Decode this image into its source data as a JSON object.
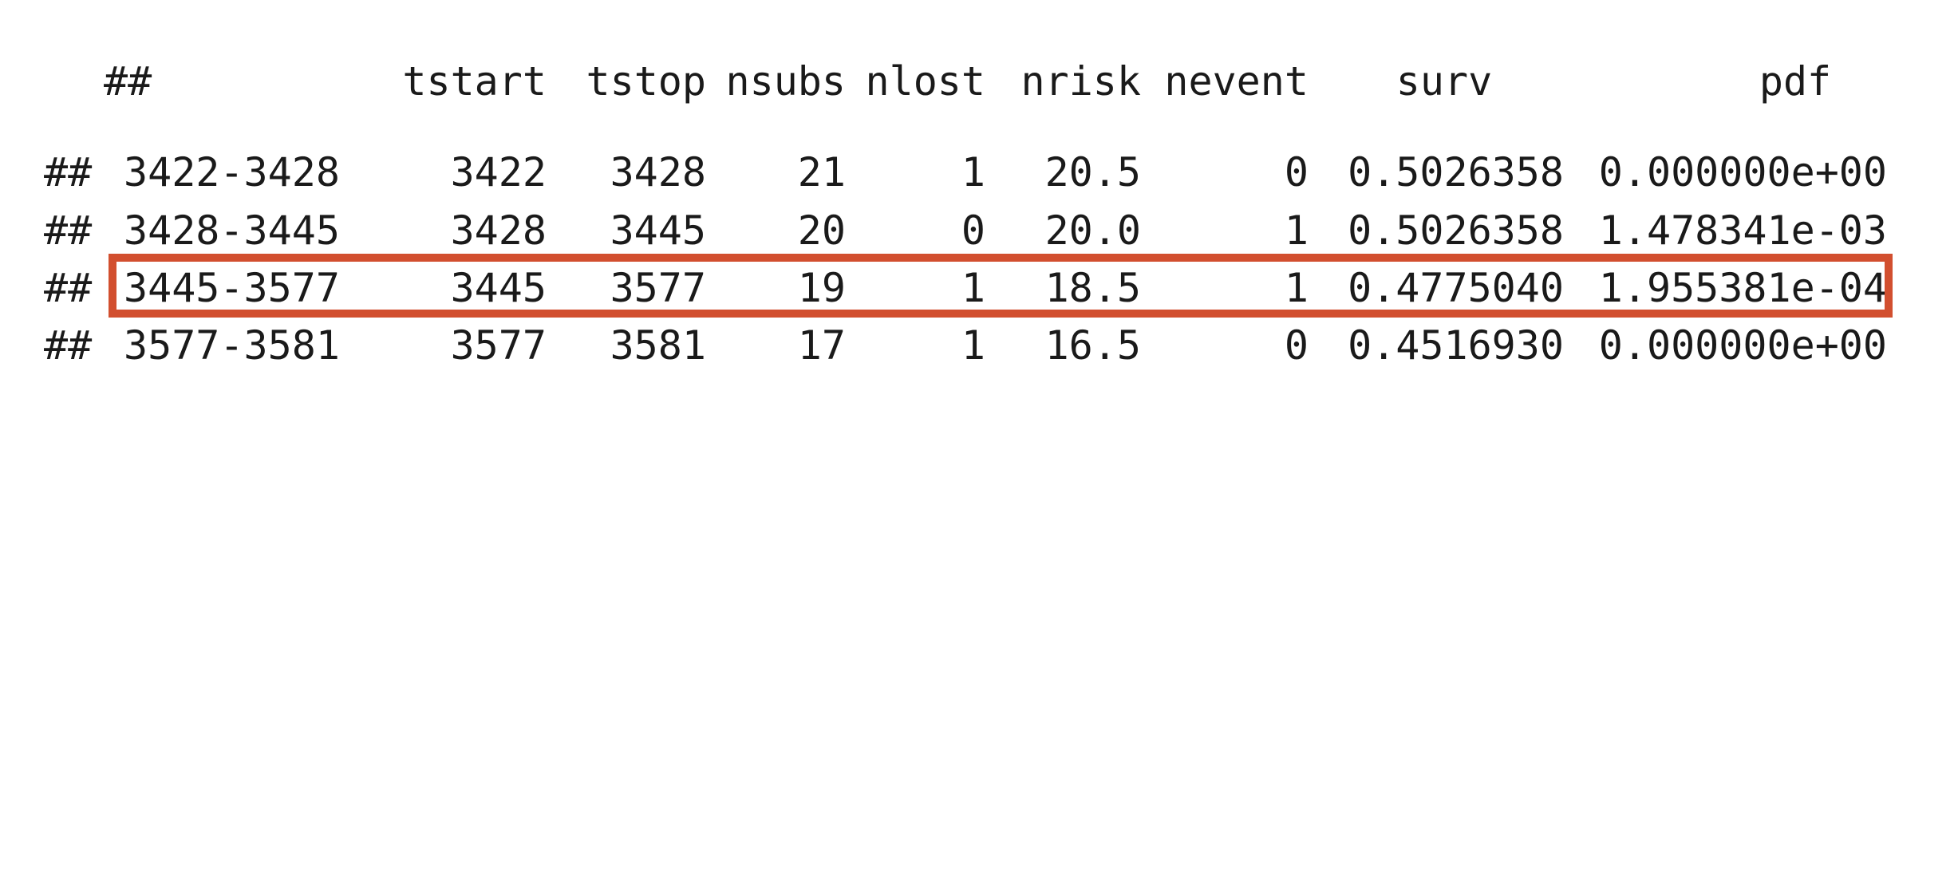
{
  "prompt": "##",
  "header": {
    "tstart": "tstart",
    "tstop": "tstop",
    "nsubs": "nsubs",
    "nlost": "nlost",
    "nrisk": "nrisk",
    "nevent": "nevent",
    "surv": "surv",
    "pdf": "pdf"
  },
  "rows": [
    {
      "prefix": "##",
      "label": "3422-3428",
      "tstart": "3422",
      "tstop": "3428",
      "nsubs": "21",
      "nlost": "1",
      "nrisk": "20.5",
      "nevent": "0",
      "surv": "0.5026358",
      "pdf": "0.000000e+00"
    },
    {
      "prefix": "##",
      "label": "3428-3445",
      "tstart": "3428",
      "tstop": "3445",
      "nsubs": "20",
      "nlost": "0",
      "nrisk": "20.0",
      "nevent": "1",
      "surv": "0.5026358",
      "pdf": "1.478341e-03"
    },
    {
      "prefix": "##",
      "label": "3445-3577",
      "tstart": "3445",
      "tstop": "3577",
      "nsubs": "19",
      "nlost": "1",
      "nrisk": "18.5",
      "nevent": "1",
      "surv": "0.4775040",
      "pdf": "1.955381e-04"
    },
    {
      "prefix": "##",
      "label": "3577-3581",
      "tstart": "3577",
      "tstop": "3581",
      "nsubs": "17",
      "nlost": "1",
      "nrisk": "16.5",
      "nevent": "0",
      "surv": "0.4516930",
      "pdf": "0.000000e+00"
    }
  ],
  "highlight": {
    "row_index": 2,
    "color": "#d24f2f"
  }
}
